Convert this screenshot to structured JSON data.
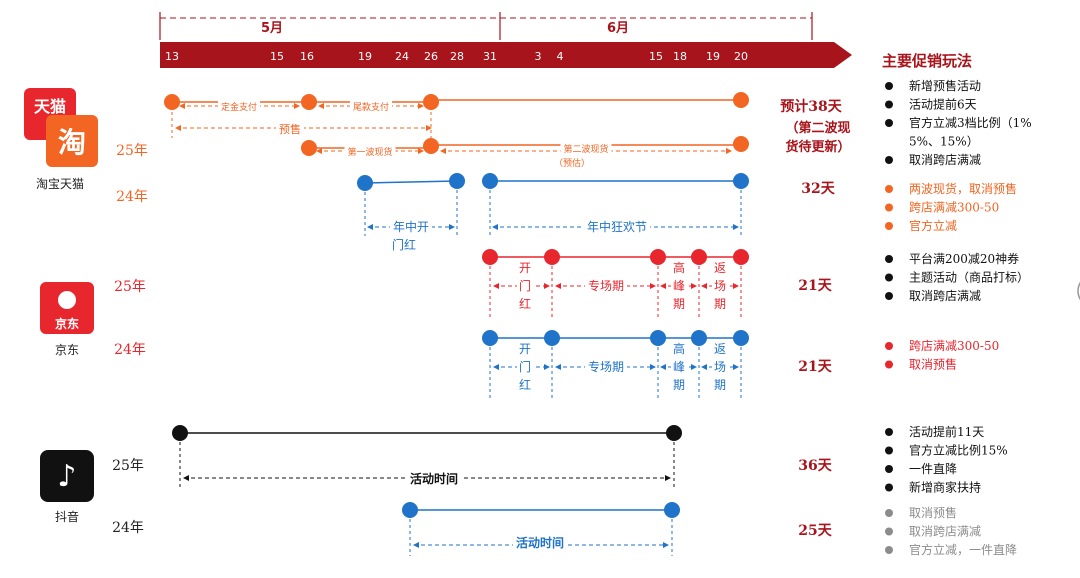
{
  "header": {
    "months": [
      {
        "label": "5月"
      },
      {
        "label": "6月"
      }
    ],
    "dates": [
      {
        "label": "13",
        "day": 13
      },
      {
        "label": "15",
        "day": 15
      },
      {
        "label": "16",
        "day": 16
      },
      {
        "label": "19",
        "day": 19
      },
      {
        "label": "24",
        "day": 24
      },
      {
        "label": "26",
        "day": 26
      },
      {
        "label": "28",
        "day": 28
      },
      {
        "label": "31",
        "day": 31
      },
      {
        "label": "3",
        "day": 34
      },
      {
        "label": "4",
        "day": 35
      },
      {
        "label": "15",
        "day": 46
      },
      {
        "label": "18",
        "day": 49
      },
      {
        "label": "19",
        "day": 50
      },
      {
        "label": "20",
        "day": 51
      }
    ],
    "colors": {
      "bar": "#a8141b"
    }
  },
  "colors": {
    "tb25": "#f26522",
    "blue": "#1f73c8",
    "jd25": "#e8262e",
    "dy25": "#111111",
    "dark": "#a8141b",
    "gray": "#8c8c8c"
  },
  "platforms": [
    {
      "name": "淘宝天猫",
      "logo": "淘",
      "logo_top": "天猫"
    },
    {
      "name": "京东",
      "logo": "京东"
    },
    {
      "name": "抖音",
      "logo": "♪"
    }
  ],
  "rows": {
    "tb25": {
      "year": "25年",
      "labels": {
        "a": "定金支付",
        "b": "尾款支付",
        "presale": "预售",
        "w1": "第一波现货",
        "w2": "第二波现货",
        "w2sub": "（预估）"
      },
      "duration": [
        "预计38天",
        "（第二波现",
        "货待更新）"
      ]
    },
    "tb24": {
      "year": "24年",
      "labels": {
        "a": "年中开",
        "a2": "门红",
        "b": "年中狂欢节"
      },
      "duration": "32天"
    },
    "jd25": {
      "year": "25年",
      "labels": {
        "p1": [
          "开",
          "门",
          "红"
        ],
        "p2": "专场期",
        "p3": [
          "高",
          "峰",
          "期"
        ],
        "p4": [
          "返",
          "场",
          "期"
        ]
      },
      "duration": "21天"
    },
    "jd24": {
      "year": "24年",
      "labels": {
        "p1": [
          "开",
          "门",
          "红"
        ],
        "p2": "专场期",
        "p3": [
          "高",
          "峰",
          "期"
        ],
        "p4": [
          "返",
          "场",
          "期"
        ]
      },
      "duration": "21天"
    },
    "dy25": {
      "year": "25年",
      "label": "活动时间",
      "duration": "36天"
    },
    "dy24": {
      "year": "24年",
      "label": "活动时间",
      "duration": "25天"
    }
  },
  "promo": {
    "title": "主要促销玩法",
    "groups": [
      {
        "items": [
          {
            "text": "新增预售活动",
            "color": "#111111"
          },
          {
            "text": "活动提前6天",
            "color": "#111111"
          },
          {
            "text": "官方立减3档比例（1%",
            "color": "#111111"
          },
          {
            "text": "5%、15%）",
            "color": "#111111",
            "cont": true
          },
          {
            "text": "取消跨店满减",
            "color": "#111111"
          }
        ]
      },
      {
        "items": [
          {
            "text": "两波现货，取消预售",
            "color": "#f26522"
          },
          {
            "text": "跨店满减300-50",
            "color": "#f26522"
          },
          {
            "text": "官方立减",
            "color": "#f26522"
          }
        ]
      },
      {
        "items": [
          {
            "text": "平台满200减20神券",
            "color": "#111111"
          },
          {
            "text": "主题活动（商品打标）",
            "color": "#111111"
          },
          {
            "text": "取消跨店满减",
            "color": "#111111"
          }
        ]
      },
      {
        "items": [
          {
            "text": "跨店满减300-50",
            "color": "#e8262e"
          },
          {
            "text": "取消预售",
            "color": "#e8262e"
          }
        ]
      },
      {
        "items": [
          {
            "text": "活动提前11天",
            "color": "#111111"
          },
          {
            "text": "官方立减比例15%",
            "color": "#111111"
          },
          {
            "text": "一件直降",
            "color": "#111111"
          },
          {
            "text": "新增商家扶持",
            "color": "#111111"
          }
        ]
      },
      {
        "items": [
          {
            "text": "取消预售",
            "color": "#8c8c8c"
          },
          {
            "text": "取消跨店满减",
            "color": "#8c8c8c"
          },
          {
            "text": "官方立减，一件直降",
            "color": "#8c8c8c"
          }
        ]
      }
    ]
  }
}
